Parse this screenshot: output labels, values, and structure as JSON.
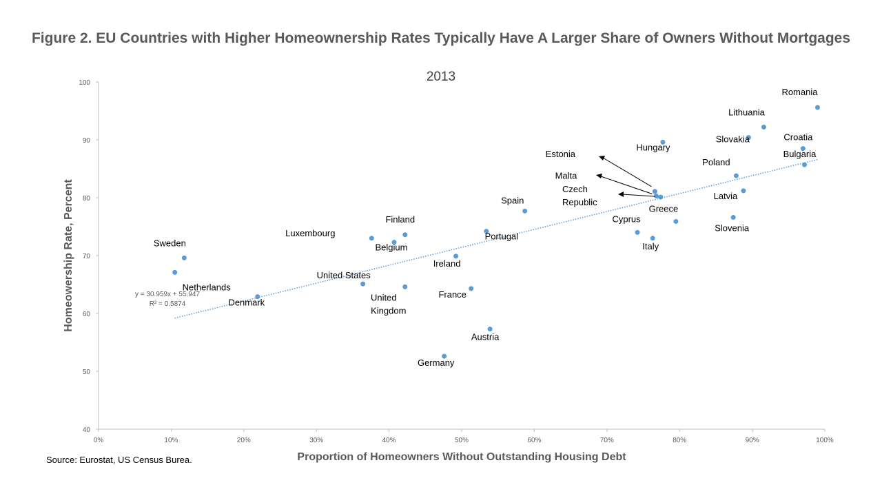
{
  "chart_data": {
    "type": "scatter",
    "title": "Figure 2. EU Countries with Higher Homeownership Rates Typically Have A Larger Share of Owners Without Mortgages",
    "subtitle": "2013",
    "xlabel": "Proportion of Homeowners Without Outstanding Housing Debt",
    "ylabel": "Homeowership Rate, Percent",
    "xlim": [
      0,
      1
    ],
    "ylim": [
      40,
      100
    ],
    "x_ticks": [
      "0%",
      "10%",
      "20%",
      "30%",
      "40%",
      "50%",
      "60%",
      "70%",
      "80%",
      "90%",
      "100%"
    ],
    "y_ticks": [
      "40",
      "50",
      "60",
      "70",
      "80",
      "90",
      "100"
    ],
    "grid": false,
    "legend": "none",
    "marker_color": "#5b9bd5",
    "points": [
      {
        "name": "Romania",
        "x": 0.99,
        "y": 95.6
      },
      {
        "name": "Lithuania",
        "x": 0.916,
        "y": 92.2
      },
      {
        "name": "Slovakia",
        "x": 0.895,
        "y": 90.4
      },
      {
        "name": "Croatia",
        "x": 0.97,
        "y": 88.5
      },
      {
        "name": "Bulgaria",
        "x": 0.972,
        "y": 85.7
      },
      {
        "name": "Hungary",
        "x": 0.777,
        "y": 89.6
      },
      {
        "name": "Poland",
        "x": 0.878,
        "y": 83.8
      },
      {
        "name": "Latvia",
        "x": 0.888,
        "y": 81.2
      },
      {
        "name": "Estonia",
        "x": 0.766,
        "y": 81.1
      },
      {
        "name": "Malta",
        "x": 0.768,
        "y": 80.3
      },
      {
        "name": "Czech Republic",
        "x": 0.774,
        "y": 80.1
      },
      {
        "name": "Spain",
        "x": 0.587,
        "y": 77.7
      },
      {
        "name": "Slovenia",
        "x": 0.874,
        "y": 76.6
      },
      {
        "name": "Greece",
        "x": 0.795,
        "y": 75.9
      },
      {
        "name": "Cyprus",
        "x": 0.742,
        "y": 74.0
      },
      {
        "name": "Italy",
        "x": 0.763,
        "y": 73.0
      },
      {
        "name": "Portugal",
        "x": 0.534,
        "y": 74.2
      },
      {
        "name": "Finland",
        "x": 0.422,
        "y": 73.6
      },
      {
        "name": "Luxembourg",
        "x": 0.376,
        "y": 73.0
      },
      {
        "name": "Belgium",
        "x": 0.407,
        "y": 72.3
      },
      {
        "name": "Ireland",
        "x": 0.492,
        "y": 69.9
      },
      {
        "name": "Sweden",
        "x": 0.118,
        "y": 69.6
      },
      {
        "name": "Netherlands",
        "x": 0.105,
        "y": 67.1
      },
      {
        "name": "United States",
        "x": 0.364,
        "y": 65.1
      },
      {
        "name": "United Kingdom",
        "x": 0.422,
        "y": 64.6
      },
      {
        "name": "France",
        "x": 0.513,
        "y": 64.3
      },
      {
        "name": "Denmark",
        "x": 0.219,
        "y": 62.9
      },
      {
        "name": "Austria",
        "x": 0.539,
        "y": 57.3
      },
      {
        "name": "Germany",
        "x": 0.476,
        "y": 52.6
      }
    ],
    "trendline": {
      "style": "dotted-linear",
      "slope": 30.959,
      "intercept": 55.947,
      "x_range": [
        0.105,
        0.99
      ],
      "equation": "y = 30.959x + 55.947",
      "r_squared": "R² = 0.5874"
    }
  },
  "source": "Source: Eurostat, US Census Burea."
}
